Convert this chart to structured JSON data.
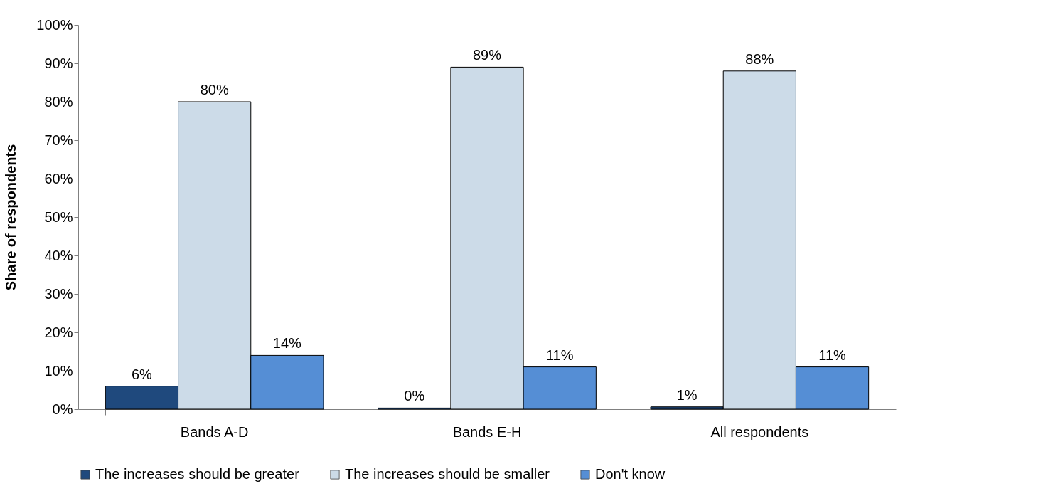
{
  "chart_data": {
    "type": "bar",
    "ylabel": "Share of respondents",
    "categories": [
      "Bands A-D",
      "Bands E-H",
      "All respondents"
    ],
    "series": [
      {
        "name": "The increases should be greater",
        "color": "#1f497d",
        "values": [
          6,
          0.3,
          0.6
        ],
        "value_labels": [
          "6%",
          "0%",
          "1%"
        ]
      },
      {
        "name": "The increases should be smaller",
        "color": "#ccdbe8",
        "values": [
          80,
          89,
          88
        ],
        "value_labels": [
          "80%",
          "89%",
          "88%"
        ]
      },
      {
        "name": "Don't know",
        "color": "#558ed5",
        "values": [
          14,
          11,
          11
        ],
        "value_labels": [
          "14%",
          "11%",
          "11%"
        ]
      }
    ],
    "ylim": [
      0,
      100
    ],
    "yticks": [
      {
        "value": 0,
        "label": "0%"
      },
      {
        "value": 10,
        "label": "10%"
      },
      {
        "value": 20,
        "label": "20%"
      },
      {
        "value": 30,
        "label": "30%"
      },
      {
        "value": 40,
        "label": "40%"
      },
      {
        "value": 50,
        "label": "50%"
      },
      {
        "value": 60,
        "label": "60%"
      },
      {
        "value": 70,
        "label": "70%"
      },
      {
        "value": 80,
        "label": "80%"
      },
      {
        "value": 90,
        "label": "90%"
      },
      {
        "value": 100,
        "label": "100%"
      }
    ],
    "grid": false,
    "legend": "bottom"
  }
}
